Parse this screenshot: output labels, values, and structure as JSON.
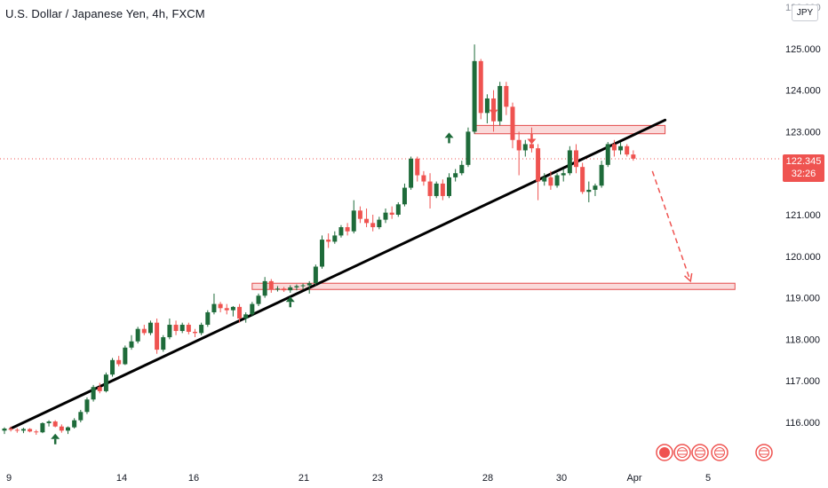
{
  "header": {
    "title": "U.S. Dollar / Japanese Yen, 4h, FXCM",
    "currency": "JPY",
    "top_tick_partial": "126.000"
  },
  "price_tag": {
    "price": "122.345",
    "countdown": "32:26"
  },
  "colors": {
    "up": "#1e6b3a",
    "down": "#ef5350",
    "trendline": "#000000",
    "zone_fill": "#f9d4d3",
    "zone_stroke": "#e34a4a",
    "axis_text": "#131722"
  },
  "chart_data": {
    "type": "candlestick",
    "title": "U.S. Dollar / Japanese Yen, 4h, FXCM",
    "y_axis": {
      "side": "right",
      "ticks": [
        "116.000",
        "117.000",
        "118.000",
        "119.000",
        "120.000",
        "121.000",
        "122.000",
        "123.000",
        "124.000",
        "125.000"
      ],
      "range": [
        115.6,
        126.2
      ]
    },
    "x_axis": {
      "ticks": [
        "9",
        "14",
        "16",
        "21",
        "23",
        "28",
        "30",
        "Apr",
        "5"
      ],
      "range": [
        0,
        112
      ]
    },
    "last_price": 122.345,
    "grid": false,
    "ohlc": [
      [
        115.8,
        115.88,
        115.72,
        115.85
      ],
      [
        115.85,
        115.9,
        115.78,
        115.82
      ],
      [
        115.82,
        115.86,
        115.75,
        115.8
      ],
      [
        115.8,
        115.87,
        115.74,
        115.84
      ],
      [
        115.84,
        115.86,
        115.76,
        115.78
      ],
      [
        115.78,
        115.82,
        115.7,
        115.76
      ],
      [
        115.76,
        116.0,
        115.74,
        115.98
      ],
      [
        115.98,
        116.05,
        115.9,
        116.02
      ],
      [
        116.02,
        116.05,
        115.88,
        115.9
      ],
      [
        115.9,
        115.95,
        115.75,
        115.8
      ],
      [
        115.8,
        115.9,
        115.72,
        115.88
      ],
      [
        115.88,
        116.1,
        115.85,
        116.05
      ],
      [
        116.05,
        116.3,
        116.0,
        116.25
      ],
      [
        116.25,
        116.6,
        116.2,
        116.55
      ],
      [
        116.55,
        116.9,
        116.5,
        116.85
      ],
      [
        116.85,
        116.95,
        116.7,
        116.75
      ],
      [
        116.75,
        117.2,
        116.72,
        117.15
      ],
      [
        117.15,
        117.55,
        117.1,
        117.5
      ],
      [
        117.5,
        117.6,
        117.35,
        117.4
      ],
      [
        117.4,
        117.85,
        117.38,
        117.8
      ],
      [
        117.8,
        118.1,
        117.75,
        117.95
      ],
      [
        117.95,
        118.3,
        117.9,
        118.25
      ],
      [
        118.25,
        118.35,
        118.1,
        118.15
      ],
      [
        118.15,
        118.45,
        118.1,
        118.4
      ],
      [
        118.4,
        118.5,
        117.65,
        117.75
      ],
      [
        117.75,
        118.1,
        117.7,
        118.05
      ],
      [
        118.05,
        118.5,
        118.0,
        118.35
      ],
      [
        118.35,
        118.45,
        118.1,
        118.2
      ],
      [
        118.2,
        118.4,
        118.15,
        118.35
      ],
      [
        118.35,
        118.4,
        118.12,
        118.18
      ],
      [
        118.18,
        118.25,
        118.05,
        118.15
      ],
      [
        118.15,
        118.4,
        118.1,
        118.35
      ],
      [
        118.35,
        118.7,
        118.3,
        118.65
      ],
      [
        118.65,
        119.1,
        118.6,
        118.85
      ],
      [
        118.85,
        118.9,
        118.65,
        118.75
      ],
      [
        118.75,
        118.85,
        118.6,
        118.7
      ],
      [
        118.7,
        118.8,
        118.55,
        118.78
      ],
      [
        118.78,
        118.85,
        118.4,
        118.5
      ],
      [
        118.5,
        118.65,
        118.4,
        118.6
      ],
      [
        118.6,
        118.9,
        118.55,
        118.85
      ],
      [
        118.85,
        119.1,
        118.8,
        119.05
      ],
      [
        119.05,
        119.5,
        119.0,
        119.4
      ],
      [
        119.4,
        119.45,
        119.12,
        119.2
      ],
      [
        119.2,
        119.28,
        119.15,
        119.22
      ],
      [
        119.22,
        119.26,
        119.14,
        119.18
      ],
      [
        119.18,
        119.3,
        119.12,
        119.25
      ],
      [
        119.25,
        119.32,
        119.18,
        119.28
      ],
      [
        119.28,
        119.34,
        119.2,
        119.3
      ],
      [
        119.3,
        119.4,
        119.1,
        119.35
      ],
      [
        119.35,
        119.8,
        119.3,
        119.75
      ],
      [
        119.75,
        120.5,
        119.7,
        120.4
      ],
      [
        120.4,
        120.55,
        120.2,
        120.35
      ],
      [
        120.35,
        120.6,
        120.3,
        120.5
      ],
      [
        120.5,
        120.75,
        120.45,
        120.7
      ],
      [
        120.7,
        120.8,
        120.5,
        120.6
      ],
      [
        120.6,
        121.35,
        120.55,
        121.1
      ],
      [
        121.1,
        121.2,
        120.8,
        120.9
      ],
      [
        120.9,
        121.15,
        120.7,
        120.8
      ],
      [
        120.8,
        121.0,
        120.6,
        120.7
      ],
      [
        120.7,
        120.95,
        120.65,
        120.88
      ],
      [
        120.88,
        121.15,
        120.8,
        121.05
      ],
      [
        121.05,
        121.2,
        120.9,
        121.0
      ],
      [
        121.0,
        121.3,
        120.95,
        121.25
      ],
      [
        121.25,
        121.75,
        121.2,
        121.65
      ],
      [
        121.65,
        122.4,
        121.6,
        122.35
      ],
      [
        122.35,
        122.4,
        121.8,
        121.95
      ],
      [
        121.95,
        122.05,
        121.7,
        121.8
      ],
      [
        121.8,
        122.0,
        121.15,
        121.45
      ],
      [
        121.45,
        121.8,
        121.4,
        121.75
      ],
      [
        121.75,
        121.85,
        121.35,
        121.45
      ],
      [
        121.45,
        122.0,
        121.4,
        121.9
      ],
      [
        121.9,
        122.1,
        121.8,
        122.0
      ],
      [
        122.0,
        122.3,
        121.95,
        122.2
      ],
      [
        122.2,
        123.1,
        122.15,
        123.0
      ],
      [
        123.0,
        125.1,
        122.95,
        124.7
      ],
      [
        124.7,
        124.75,
        123.3,
        123.45
      ],
      [
        123.45,
        123.9,
        123.2,
        123.8
      ],
      [
        123.8,
        124.0,
        123.0,
        123.25
      ],
      [
        123.25,
        124.2,
        123.15,
        124.1
      ],
      [
        124.1,
        124.2,
        123.4,
        123.6
      ],
      [
        123.6,
        123.7,
        122.6,
        122.8
      ],
      [
        122.8,
        123.0,
        121.95,
        122.55
      ],
      [
        122.55,
        122.8,
        122.4,
        122.7
      ],
      [
        122.7,
        123.1,
        122.5,
        122.6
      ],
      [
        122.6,
        122.7,
        121.35,
        121.8
      ],
      [
        121.8,
        122.0,
        121.7,
        121.9
      ],
      [
        121.9,
        122.05,
        121.6,
        121.7
      ],
      [
        121.7,
        122.0,
        121.65,
        121.95
      ],
      [
        121.95,
        122.1,
        121.8,
        122.0
      ],
      [
        122.0,
        122.65,
        121.95,
        122.55
      ],
      [
        122.55,
        122.7,
        122.0,
        122.15
      ],
      [
        122.15,
        122.25,
        121.5,
        121.55
      ],
      [
        121.55,
        121.8,
        121.3,
        121.6
      ],
      [
        121.6,
        121.75,
        121.45,
        121.7
      ],
      [
        121.7,
        122.3,
        121.65,
        122.2
      ],
      [
        122.2,
        122.75,
        122.15,
        122.7
      ],
      [
        122.7,
        122.8,
        122.4,
        122.55
      ],
      [
        122.55,
        122.75,
        122.45,
        122.65
      ],
      [
        122.65,
        122.7,
        122.4,
        122.45
      ],
      [
        122.45,
        122.55,
        122.3,
        122.35
      ]
    ],
    "trendline": {
      "start": [
        1,
        115.85
      ],
      "end": [
        104,
        123.28
      ]
    },
    "zones": [
      {
        "x_start": 74,
        "x_end": 104,
        "low": 122.95,
        "high": 123.15
      },
      {
        "x_start": 39,
        "x_end": 115,
        "low": 119.2,
        "high": 119.35
      }
    ],
    "arrows_up": [
      [
        8,
        115.6
      ],
      [
        45,
        118.9
      ],
      [
        70,
        122.85
      ]
    ],
    "arrows_down": [
      [
        77,
        123.4
      ],
      [
        83,
        122.7
      ]
    ],
    "projection": {
      "from": [
        102,
        122.05
      ],
      "to": [
        108,
        119.4
      ]
    }
  }
}
